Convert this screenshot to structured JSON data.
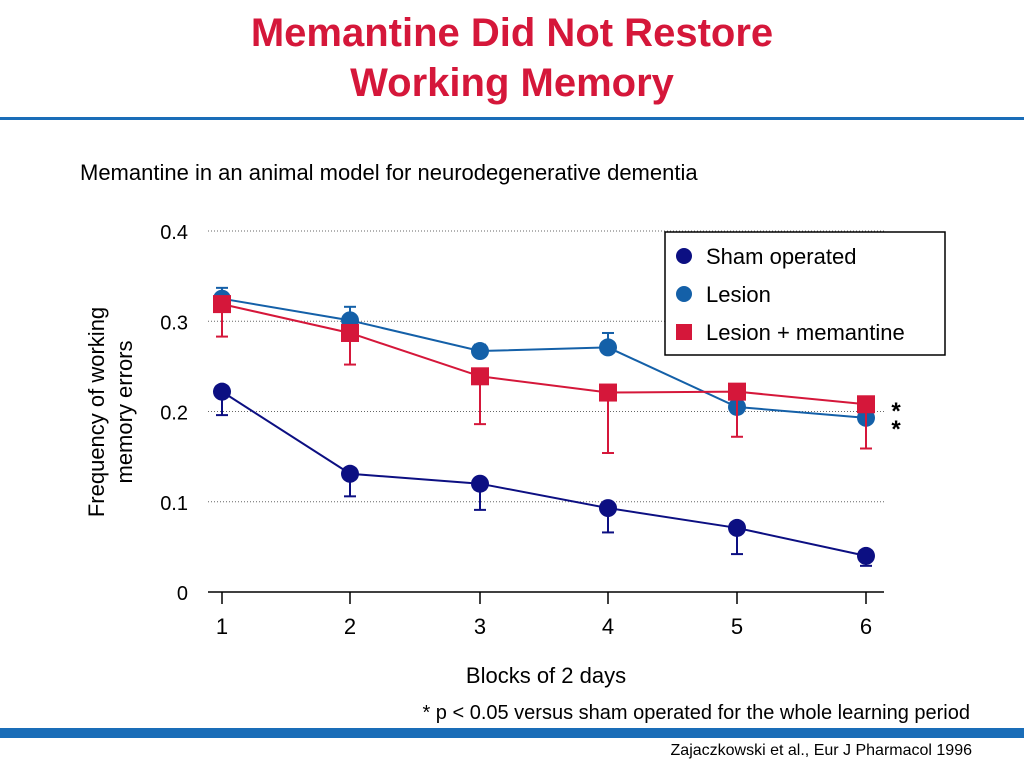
{
  "slide": {
    "title_line1": "Memantine Did Not Restore",
    "title_line2": "Working Memory",
    "subtitle": "Memantine in an animal model for neurodegenerative dementia",
    "footnote": "* p < 0.05 versus sham operated for the whole learning period",
    "citation": "Zajaczkowski et al., Eur J Pharmacol 1996"
  },
  "colors": {
    "title": "#d5173a",
    "rule": "#1a6db8"
  },
  "chart_data": {
    "type": "line",
    "title": "",
    "xlabel": "Blocks of 2 days",
    "ylabel_line1": "Frequency of working",
    "ylabel_line2": "memory errors",
    "x": [
      1,
      2,
      3,
      4,
      5,
      6
    ],
    "xticks": [
      "1",
      "2",
      "3",
      "4",
      "5",
      "6"
    ],
    "ylim": [
      0,
      0.4
    ],
    "yticks": [
      0,
      0.1,
      0.2,
      0.3,
      0.4
    ],
    "yticklabels": [
      "0",
      "0.1",
      "0.2",
      "0.3",
      "0.4"
    ],
    "grid": "horizontal-dotted",
    "legend_position": "top-right",
    "series": [
      {
        "name": "Sham operated",
        "color": "#0c0f82",
        "marker": "circle",
        "values": [
          0.222,
          0.131,
          0.12,
          0.093,
          0.071,
          0.04
        ],
        "errors": [
          0.026,
          0.025,
          0.029,
          0.027,
          0.029,
          0.011
        ]
      },
      {
        "name": "Lesion",
        "color": "#1460a8",
        "marker": "circle",
        "values": [
          0.325,
          0.301,
          0.267,
          0.271,
          0.205,
          0.193
        ],
        "errors": [
          0.012,
          0.015,
          0.007,
          0.016,
          0.0,
          0.0
        ]
      },
      {
        "name": "Lesion + memantine",
        "color": "#d5173a",
        "marker": "square",
        "values": [
          0.319,
          0.287,
          0.239,
          0.221,
          0.222,
          0.208
        ],
        "errors": [
          0.036,
          0.035,
          0.053,
          0.067,
          0.05,
          0.049
        ]
      }
    ],
    "annotations": [
      "*",
      "*"
    ]
  }
}
